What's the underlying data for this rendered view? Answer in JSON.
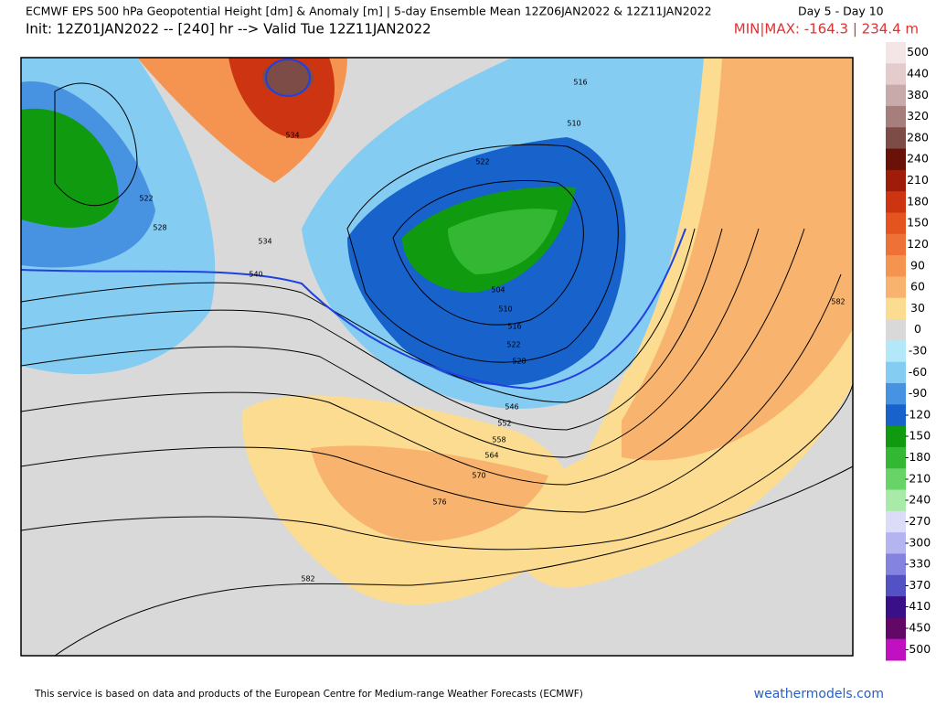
{
  "header": {
    "title": "ECMWF EPS 500 hPa Geopotential Height [dm] & Anomaly [m] | 5-day Ensemble Mean 12Z06JAN2022 & 12Z11JAN2022",
    "days": "Day 5 - Day 10",
    "init": "Init: 12Z01JAN2022 -- [240] hr --> Valid Tue 12Z11JAN2022",
    "minmax": "MIN|MAX: -164.3 | 234.4 m"
  },
  "map": {
    "contour_labels": [
      534,
      522,
      528,
      534,
      540,
      516,
      510,
      522,
      504,
      510,
      516,
      522,
      528,
      546,
      552,
      558,
      564,
      570,
      576,
      582,
      582
    ]
  },
  "legend": {
    "labels": [
      500,
      440,
      380,
      320,
      280,
      240,
      210,
      180,
      150,
      120,
      90,
      60,
      30,
      0,
      -30,
      -60,
      -90,
      -120,
      -150,
      -180,
      -210,
      -240,
      -270,
      -300,
      -330,
      -370,
      -410,
      -450,
      -500
    ],
    "colors": [
      "#f4e6e6",
      "#e4cccc",
      "#c9aaaa",
      "#a67e7c",
      "#7e4c46",
      "#6a1208",
      "#a01c0a",
      "#cc3412",
      "#e4541e",
      "#ee7238",
      "#f49450",
      "#f8b46e",
      "#fcdc90",
      "#d9d9d9",
      "#b2e8f8",
      "#84ccf2",
      "#4892e2",
      "#1862cc",
      "#109a10",
      "#34b834",
      "#68d468",
      "#a8eaa8",
      "#dcdcf8",
      "#b4b4f0",
      "#8484e0",
      "#5252c4",
      "#3a1088",
      "#640868",
      "#c010c0"
    ]
  },
  "footer": {
    "notice": "This service is based on data and products of the European Centre for Medium-range Weather Forecasts (ECMWF)",
    "site": "weathermodels.com"
  }
}
